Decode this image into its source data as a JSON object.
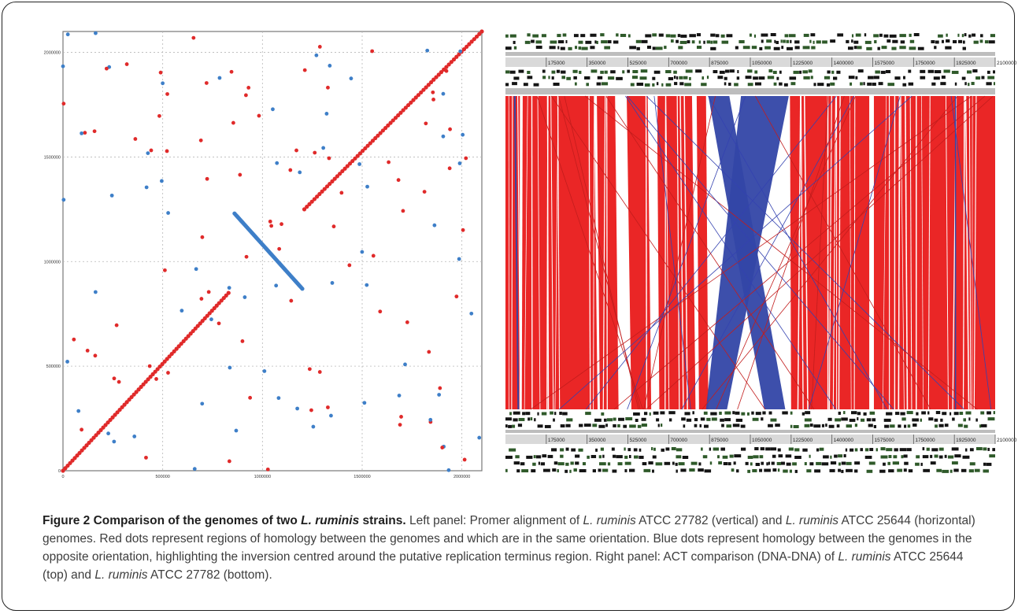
{
  "caption": {
    "figure_label": "Figure 2",
    "title_pre": "Comparison of the genomes of two ",
    "title_species": "L. ruminis",
    "title_post": " strains.",
    "p1": " Left panel: Promer alignment of ",
    "s1": "L. ruminis",
    "p2": " ATCC 27782 (vertical) and ",
    "s2": "L. ruminis",
    "p3": " ATCC 25644 (horizontal) genomes. Red dots represent regions of homology between the genomes and which are in the same orientation. Blue dots represent homology between the genomes in the opposite orientation, highlighting the inversion centred around the putative replication terminus region. Right panel: ACT comparison (DNA-DNA) of ",
    "s3": "L. ruminis",
    "p4": " ATCC 25644 (top) and ",
    "s4": "L. ruminis",
    "p5": " ATCC 27782 (bottom)."
  },
  "colors": {
    "forward_match": "#e02a2a",
    "reverse_match": "#3e7fc8",
    "act_forward": "#ea2626",
    "act_reverse": "#3346a6",
    "grid": "#b8b8b8"
  },
  "chart_data": [
    {
      "type": "scatter",
      "title": "",
      "xlabel": "",
      "ylabel": "",
      "xlim": [
        0,
        2100000
      ],
      "ylim": [
        0,
        2100000
      ],
      "x_ticks": [
        "0",
        "500000",
        "1000000",
        "1500000",
        "2000000"
      ],
      "y_ticks": [
        "0",
        "500000",
        "1000000",
        "1500000",
        "2000000"
      ],
      "grid": true,
      "series": [
        {
          "color": "red",
          "segments": [
            {
              "x": [
                0,
                830000
              ],
              "y": [
                0,
                850000
              ]
            },
            {
              "x": [
                1210000,
                2100000
              ],
              "y": [
                1250000,
                2100000
              ]
            }
          ]
        },
        {
          "color": "blue",
          "segments": [
            {
              "x": [
                860000,
                1200000
              ],
              "y": [
                1230000,
                870000
              ]
            }
          ]
        }
      ]
    },
    {
      "type": "table",
      "title": "",
      "ruler_ticks": [
        "175000",
        "350000",
        "525000",
        "700000",
        "875000",
        "1050000",
        "1225000",
        "1400000",
        "1575000",
        "1750000",
        "1925000",
        "2100000"
      ],
      "ruler_range": [
        0,
        2100000
      ],
      "comparison": "DNA-DNA",
      "inverted_region": [
        860000,
        1210000
      ]
    }
  ]
}
